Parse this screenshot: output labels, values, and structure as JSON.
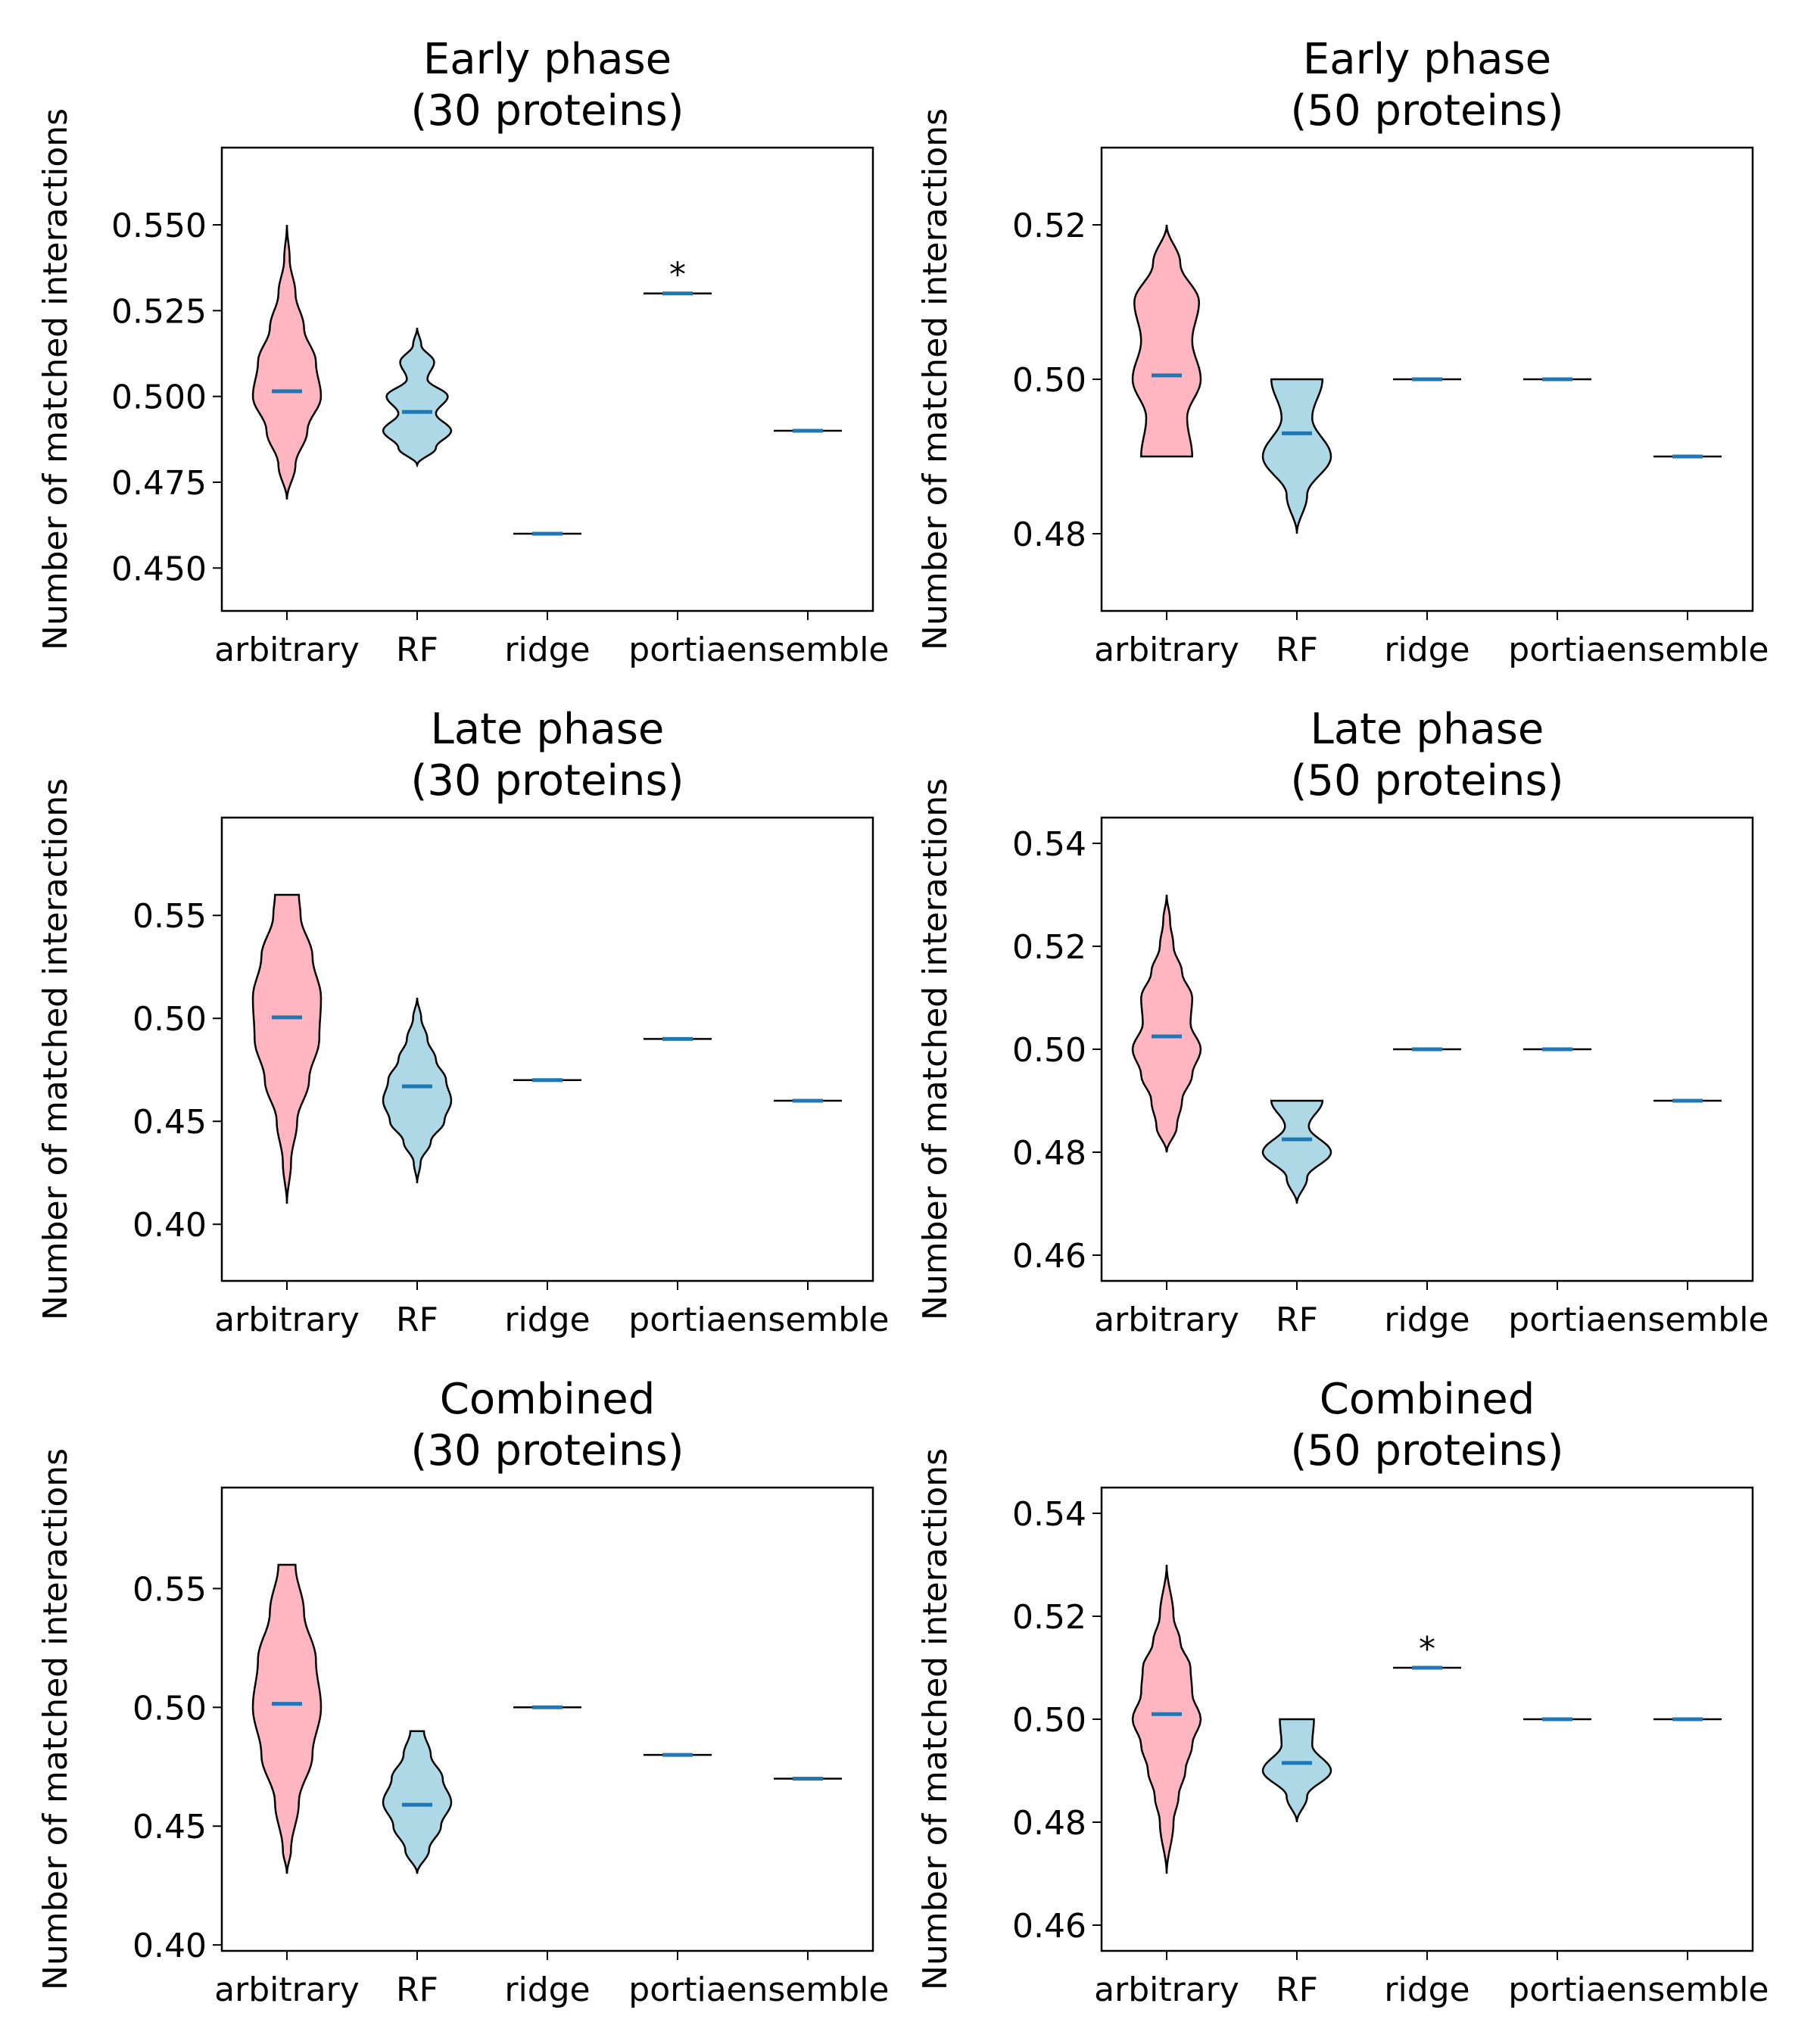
{
  "colors": {
    "arbitrary": "#ffb6c1",
    "RF": "#add8e6",
    "mean_line": "#1f77b4",
    "outline": "#000000"
  },
  "chart_data": [
    {
      "type": "violin",
      "title": "Early phase\n(30 proteins)",
      "ylabel": "Number of matched interactions",
      "categories": [
        "arbitrary",
        "RF",
        "ridge",
        "portia",
        "ensemble"
      ],
      "ylim": [
        0.4375,
        0.5725
      ],
      "yticks": [
        "0.450",
        "0.475",
        "0.500",
        "0.525",
        "0.550"
      ],
      "series": [
        {
          "category": "arbitrary",
          "kind": "violin",
          "min": 0.47,
          "max": 0.55,
          "mean": 0.5015,
          "density": [
            [
              0.47,
              0.0
            ],
            [
              0.48,
              0.25
            ],
            [
              0.49,
              0.6
            ],
            [
              0.5,
              1.0
            ],
            [
              0.51,
              0.85
            ],
            [
              0.52,
              0.5
            ],
            [
              0.53,
              0.25
            ],
            [
              0.54,
              0.08
            ],
            [
              0.55,
              0.0
            ]
          ]
        },
        {
          "category": "RF",
          "kind": "violin",
          "min": 0.48,
          "max": 0.52,
          "mean": 0.4955,
          "density": [
            [
              0.48,
              0.0
            ],
            [
              0.485,
              0.55
            ],
            [
              0.49,
              1.0
            ],
            [
              0.495,
              0.55
            ],
            [
              0.5,
              0.9
            ],
            [
              0.505,
              0.3
            ],
            [
              0.51,
              0.5
            ],
            [
              0.515,
              0.12
            ],
            [
              0.52,
              0.0
            ]
          ]
        },
        {
          "category": "ridge",
          "kind": "point",
          "value": 0.46
        },
        {
          "category": "portia",
          "kind": "point",
          "value": 0.53,
          "marker": "*"
        },
        {
          "category": "ensemble",
          "kind": "point",
          "value": 0.49
        }
      ]
    },
    {
      "type": "violin",
      "title": "Early phase\n(50 proteins)",
      "ylabel": "Number of matched interactions",
      "categories": [
        "arbitrary",
        "RF",
        "ridge",
        "portia",
        "ensemble"
      ],
      "ylim": [
        0.47,
        0.53
      ],
      "yticks": [
        "0.48",
        "0.50",
        "0.52"
      ],
      "series": [
        {
          "category": "arbitrary",
          "kind": "violin",
          "min": 0.49,
          "max": 0.52,
          "mean": 0.5005,
          "density": [
            [
              0.49,
              0.75
            ],
            [
              0.495,
              0.6
            ],
            [
              0.5,
              1.0
            ],
            [
              0.505,
              0.75
            ],
            [
              0.51,
              0.95
            ],
            [
              0.515,
              0.4
            ],
            [
              0.52,
              0.0
            ]
          ]
        },
        {
          "category": "RF",
          "kind": "violin",
          "min": 0.48,
          "max": 0.5,
          "mean": 0.493,
          "density": [
            [
              0.48,
              0.0
            ],
            [
              0.485,
              0.3
            ],
            [
              0.49,
              1.0
            ],
            [
              0.495,
              0.45
            ],
            [
              0.5,
              0.75
            ]
          ]
        },
        {
          "category": "ridge",
          "kind": "point",
          "value": 0.5
        },
        {
          "category": "portia",
          "kind": "point",
          "value": 0.5
        },
        {
          "category": "ensemble",
          "kind": "point",
          "value": 0.49
        }
      ]
    },
    {
      "type": "violin",
      "title": "Late phase\n(30 proteins)",
      "ylabel": "Number of matched interactions",
      "categories": [
        "arbitrary",
        "RF",
        "ridge",
        "portia",
        "ensemble"
      ],
      "ylim": [
        0.3725,
        0.5975
      ],
      "yticks": [
        "0.40",
        "0.45",
        "0.50",
        "0.55"
      ],
      "series": [
        {
          "category": "arbitrary",
          "kind": "violin",
          "min": 0.41,
          "max": 0.56,
          "mean": 0.5005,
          "density": [
            [
              0.41,
              0.0
            ],
            [
              0.43,
              0.12
            ],
            [
              0.45,
              0.3
            ],
            [
              0.47,
              0.65
            ],
            [
              0.49,
              0.95
            ],
            [
              0.51,
              1.0
            ],
            [
              0.53,
              0.75
            ],
            [
              0.55,
              0.4
            ],
            [
              0.56,
              0.35
            ]
          ]
        },
        {
          "category": "RF",
          "kind": "violin",
          "min": 0.42,
          "max": 0.51,
          "mean": 0.467,
          "density": [
            [
              0.42,
              0.0
            ],
            [
              0.43,
              0.1
            ],
            [
              0.44,
              0.4
            ],
            [
              0.45,
              0.8
            ],
            [
              0.46,
              1.0
            ],
            [
              0.47,
              0.85
            ],
            [
              0.48,
              0.55
            ],
            [
              0.49,
              0.3
            ],
            [
              0.5,
              0.12
            ],
            [
              0.51,
              0.0
            ]
          ]
        },
        {
          "category": "ridge",
          "kind": "point",
          "value": 0.47
        },
        {
          "category": "portia",
          "kind": "point",
          "value": 0.49
        },
        {
          "category": "ensemble",
          "kind": "point",
          "value": 0.46
        }
      ]
    },
    {
      "type": "violin",
      "title": "Late phase\n(50 proteins)",
      "ylabel": "Number of matched interactions",
      "categories": [
        "arbitrary",
        "RF",
        "ridge",
        "portia",
        "ensemble"
      ],
      "ylim": [
        0.455,
        0.545
      ],
      "yticks": [
        "0.46",
        "0.48",
        "0.50",
        "0.52",
        "0.54"
      ],
      "series": [
        {
          "category": "arbitrary",
          "kind": "violin",
          "min": 0.48,
          "max": 0.53,
          "mean": 0.5025,
          "density": [
            [
              0.48,
              0.0
            ],
            [
              0.485,
              0.3
            ],
            [
              0.49,
              0.45
            ],
            [
              0.495,
              0.75
            ],
            [
              0.5,
              1.0
            ],
            [
              0.505,
              0.7
            ],
            [
              0.51,
              0.75
            ],
            [
              0.515,
              0.45
            ],
            [
              0.52,
              0.2
            ],
            [
              0.525,
              0.1
            ],
            [
              0.53,
              0.0
            ]
          ]
        },
        {
          "category": "RF",
          "kind": "violin",
          "min": 0.47,
          "max": 0.49,
          "mean": 0.4825,
          "density": [
            [
              0.47,
              0.0
            ],
            [
              0.475,
              0.3
            ],
            [
              0.48,
              1.0
            ],
            [
              0.485,
              0.35
            ],
            [
              0.49,
              0.75
            ]
          ]
        },
        {
          "category": "ridge",
          "kind": "point",
          "value": 0.5
        },
        {
          "category": "portia",
          "kind": "point",
          "value": 0.5
        },
        {
          "category": "ensemble",
          "kind": "point",
          "value": 0.49
        }
      ]
    },
    {
      "type": "violin",
      "title": "Combined\n(30 proteins)",
      "ylabel": "Number of matched interactions",
      "categories": [
        "arbitrary",
        "RF",
        "ridge",
        "portia",
        "ensemble"
      ],
      "ylim": [
        0.3975,
        0.5925
      ],
      "yticks": [
        "0.40",
        "0.45",
        "0.50",
        "0.55"
      ],
      "series": [
        {
          "category": "arbitrary",
          "kind": "violin",
          "min": 0.43,
          "max": 0.56,
          "mean": 0.5015,
          "density": [
            [
              0.43,
              0.0
            ],
            [
              0.44,
              0.12
            ],
            [
              0.46,
              0.35
            ],
            [
              0.48,
              0.75
            ],
            [
              0.5,
              1.0
            ],
            [
              0.52,
              0.85
            ],
            [
              0.54,
              0.5
            ],
            [
              0.56,
              0.25
            ]
          ]
        },
        {
          "category": "RF",
          "kind": "violin",
          "min": 0.43,
          "max": 0.49,
          "mean": 0.459,
          "density": [
            [
              0.43,
              0.0
            ],
            [
              0.44,
              0.35
            ],
            [
              0.45,
              0.7
            ],
            [
              0.46,
              1.0
            ],
            [
              0.47,
              0.75
            ],
            [
              0.48,
              0.4
            ],
            [
              0.49,
              0.2
            ]
          ]
        },
        {
          "category": "ridge",
          "kind": "point",
          "value": 0.5
        },
        {
          "category": "portia",
          "kind": "point",
          "value": 0.48
        },
        {
          "category": "ensemble",
          "kind": "point",
          "value": 0.47
        }
      ]
    },
    {
      "type": "violin",
      "title": "Combined\n(50 proteins)",
      "ylabel": "Number of matched interactions",
      "categories": [
        "arbitrary",
        "RF",
        "ridge",
        "portia",
        "ensemble"
      ],
      "ylim": [
        0.455,
        0.545
      ],
      "yticks": [
        "0.46",
        "0.48",
        "0.50",
        "0.52",
        "0.54"
      ],
      "series": [
        {
          "category": "arbitrary",
          "kind": "violin",
          "min": 0.47,
          "max": 0.53,
          "mean": 0.501,
          "density": [
            [
              0.47,
              0.0
            ],
            [
              0.48,
              0.2
            ],
            [
              0.485,
              0.35
            ],
            [
              0.49,
              0.55
            ],
            [
              0.495,
              0.75
            ],
            [
              0.5,
              1.0
            ],
            [
              0.505,
              0.75
            ],
            [
              0.51,
              0.7
            ],
            [
              0.515,
              0.4
            ],
            [
              0.52,
              0.2
            ],
            [
              0.53,
              0.0
            ]
          ]
        },
        {
          "category": "RF",
          "kind": "violin",
          "min": 0.48,
          "max": 0.5,
          "mean": 0.4915,
          "density": [
            [
              0.48,
              0.0
            ],
            [
              0.485,
              0.3
            ],
            [
              0.49,
              1.0
            ],
            [
              0.495,
              0.45
            ],
            [
              0.5,
              0.5
            ]
          ]
        },
        {
          "category": "ridge",
          "kind": "point",
          "value": 0.51,
          "marker": "*"
        },
        {
          "category": "portia",
          "kind": "point",
          "value": 0.5
        },
        {
          "category": "ensemble",
          "kind": "point",
          "value": 0.5
        }
      ]
    }
  ]
}
